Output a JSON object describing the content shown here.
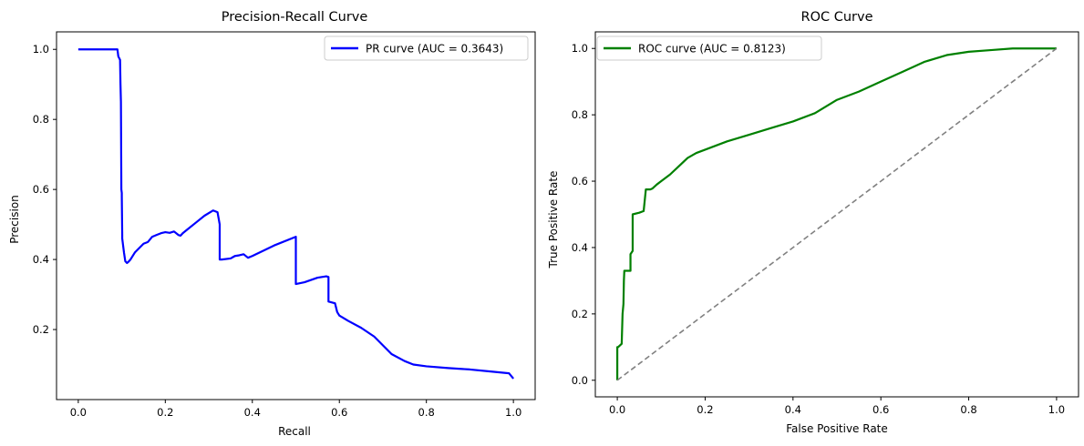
{
  "chart_data": [
    {
      "type": "line",
      "title": "Precision-Recall Curve",
      "xlabel": "Recall",
      "ylabel": "Precision",
      "xlim": [
        -0.05,
        1.05
      ],
      "ylim": [
        0.0,
        1.05
      ],
      "xticks": [
        "0.0",
        "0.2",
        "0.4",
        "0.6",
        "0.8",
        "1.0"
      ],
      "yticks": [
        "0.2",
        "0.4",
        "0.6",
        "0.8",
        "1.0"
      ],
      "legend_position": "upper right",
      "series": [
        {
          "name": "PR curve (AUC = 0.3643)",
          "color": "#0000ff",
          "x": [
            0.0,
            0.09,
            0.092,
            0.096,
            0.097,
            0.098,
            0.099,
            0.1,
            0.1,
            0.101,
            0.101,
            0.102,
            0.103,
            0.104,
            0.105,
            0.108,
            0.112,
            0.115,
            0.12,
            0.13,
            0.15,
            0.16,
            0.17,
            0.18,
            0.19,
            0.2,
            0.21,
            0.22,
            0.23,
            0.235,
            0.24,
            0.25,
            0.27,
            0.29,
            0.31,
            0.32,
            0.325,
            0.325,
            0.33,
            0.35,
            0.36,
            0.37,
            0.38,
            0.39,
            0.4,
            0.45,
            0.5,
            0.5,
            0.52,
            0.55,
            0.57,
            0.575,
            0.575,
            0.59,
            0.595,
            0.6,
            0.62,
            0.65,
            0.68,
            0.7,
            0.72,
            0.75,
            0.77,
            0.8,
            0.85,
            0.9,
            0.95,
            0.99,
            1.0
          ],
          "y": [
            1.0,
            1.0,
            0.98,
            0.97,
            0.9,
            0.85,
            0.6,
            0.59,
            0.58,
            0.47,
            0.46,
            0.45,
            0.44,
            0.43,
            0.42,
            0.395,
            0.39,
            0.393,
            0.4,
            0.42,
            0.445,
            0.45,
            0.465,
            0.47,
            0.475,
            0.478,
            0.476,
            0.48,
            0.47,
            0.468,
            0.475,
            0.485,
            0.505,
            0.525,
            0.54,
            0.535,
            0.5,
            0.4,
            0.4,
            0.403,
            0.41,
            0.412,
            0.415,
            0.405,
            0.41,
            0.44,
            0.465,
            0.33,
            0.335,
            0.348,
            0.352,
            0.35,
            0.28,
            0.275,
            0.25,
            0.24,
            0.225,
            0.205,
            0.18,
            0.155,
            0.13,
            0.11,
            0.1,
            0.095,
            0.09,
            0.086,
            0.08,
            0.075,
            0.06
          ]
        }
      ]
    },
    {
      "type": "line",
      "title": "ROC Curve",
      "xlabel": "False Positive Rate",
      "ylabel": "True Positive Rate",
      "xlim": [
        -0.05,
        1.05
      ],
      "ylim": [
        -0.05,
        1.05
      ],
      "xticks": [
        "0.0",
        "0.2",
        "0.4",
        "0.6",
        "0.8",
        "1.0"
      ],
      "yticks": [
        "0.0",
        "0.2",
        "0.4",
        "0.6",
        "0.8",
        "1.0"
      ],
      "legend_position": "upper left",
      "series": [
        {
          "name": "ROC curve (AUC = 0.8123)",
          "color": "#008000",
          "x": [
            0.0,
            0.0,
            0.002,
            0.01,
            0.012,
            0.014,
            0.015,
            0.016,
            0.018,
            0.03,
            0.03,
            0.035,
            0.035,
            0.05,
            0.06,
            0.065,
            0.075,
            0.08,
            0.09,
            0.1,
            0.12,
            0.14,
            0.16,
            0.18,
            0.2,
            0.25,
            0.3,
            0.35,
            0.4,
            0.45,
            0.5,
            0.55,
            0.6,
            0.65,
            0.7,
            0.75,
            0.8,
            0.85,
            0.9,
            0.95,
            1.0
          ],
          "y": [
            0.0,
            0.1,
            0.1,
            0.11,
            0.2,
            0.23,
            0.3,
            0.33,
            0.33,
            0.33,
            0.38,
            0.39,
            0.5,
            0.505,
            0.51,
            0.575,
            0.575,
            0.578,
            0.59,
            0.6,
            0.62,
            0.645,
            0.67,
            0.685,
            0.695,
            0.72,
            0.74,
            0.76,
            0.78,
            0.805,
            0.845,
            0.87,
            0.9,
            0.93,
            0.96,
            0.98,
            0.99,
            0.995,
            1.0,
            1.0,
            1.0
          ]
        },
        {
          "color": "#808080",
          "dashed": true,
          "x": [
            0.0,
            1.0
          ],
          "y": [
            0.0,
            1.0
          ]
        }
      ]
    }
  ]
}
